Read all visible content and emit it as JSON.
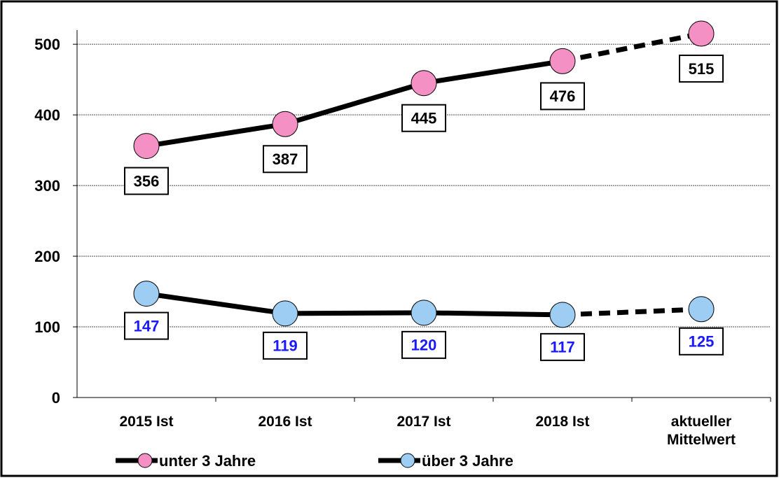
{
  "chart_data": {
    "type": "line",
    "categories": [
      "2015 Ist",
      "2016 Ist",
      "2017 Ist",
      "2018 Ist",
      "aktueller Mittelwert"
    ],
    "series": [
      {
        "name": "unter 3 Jahre",
        "color": "#f590c4",
        "label_color": "#000000",
        "values": [
          356,
          387,
          445,
          476,
          515
        ]
      },
      {
        "name": "über 3 Jahre",
        "color": "#9dcdf2",
        "label_color": "#1a1aff",
        "values": [
          147,
          119,
          120,
          117,
          125
        ]
      }
    ],
    "line_color": "#000000",
    "last_segment_dashed": true,
    "ylim": [
      0,
      520
    ],
    "yticks": [
      0,
      100,
      200,
      300,
      400,
      500
    ],
    "grid": true,
    "legend": "bottom"
  }
}
